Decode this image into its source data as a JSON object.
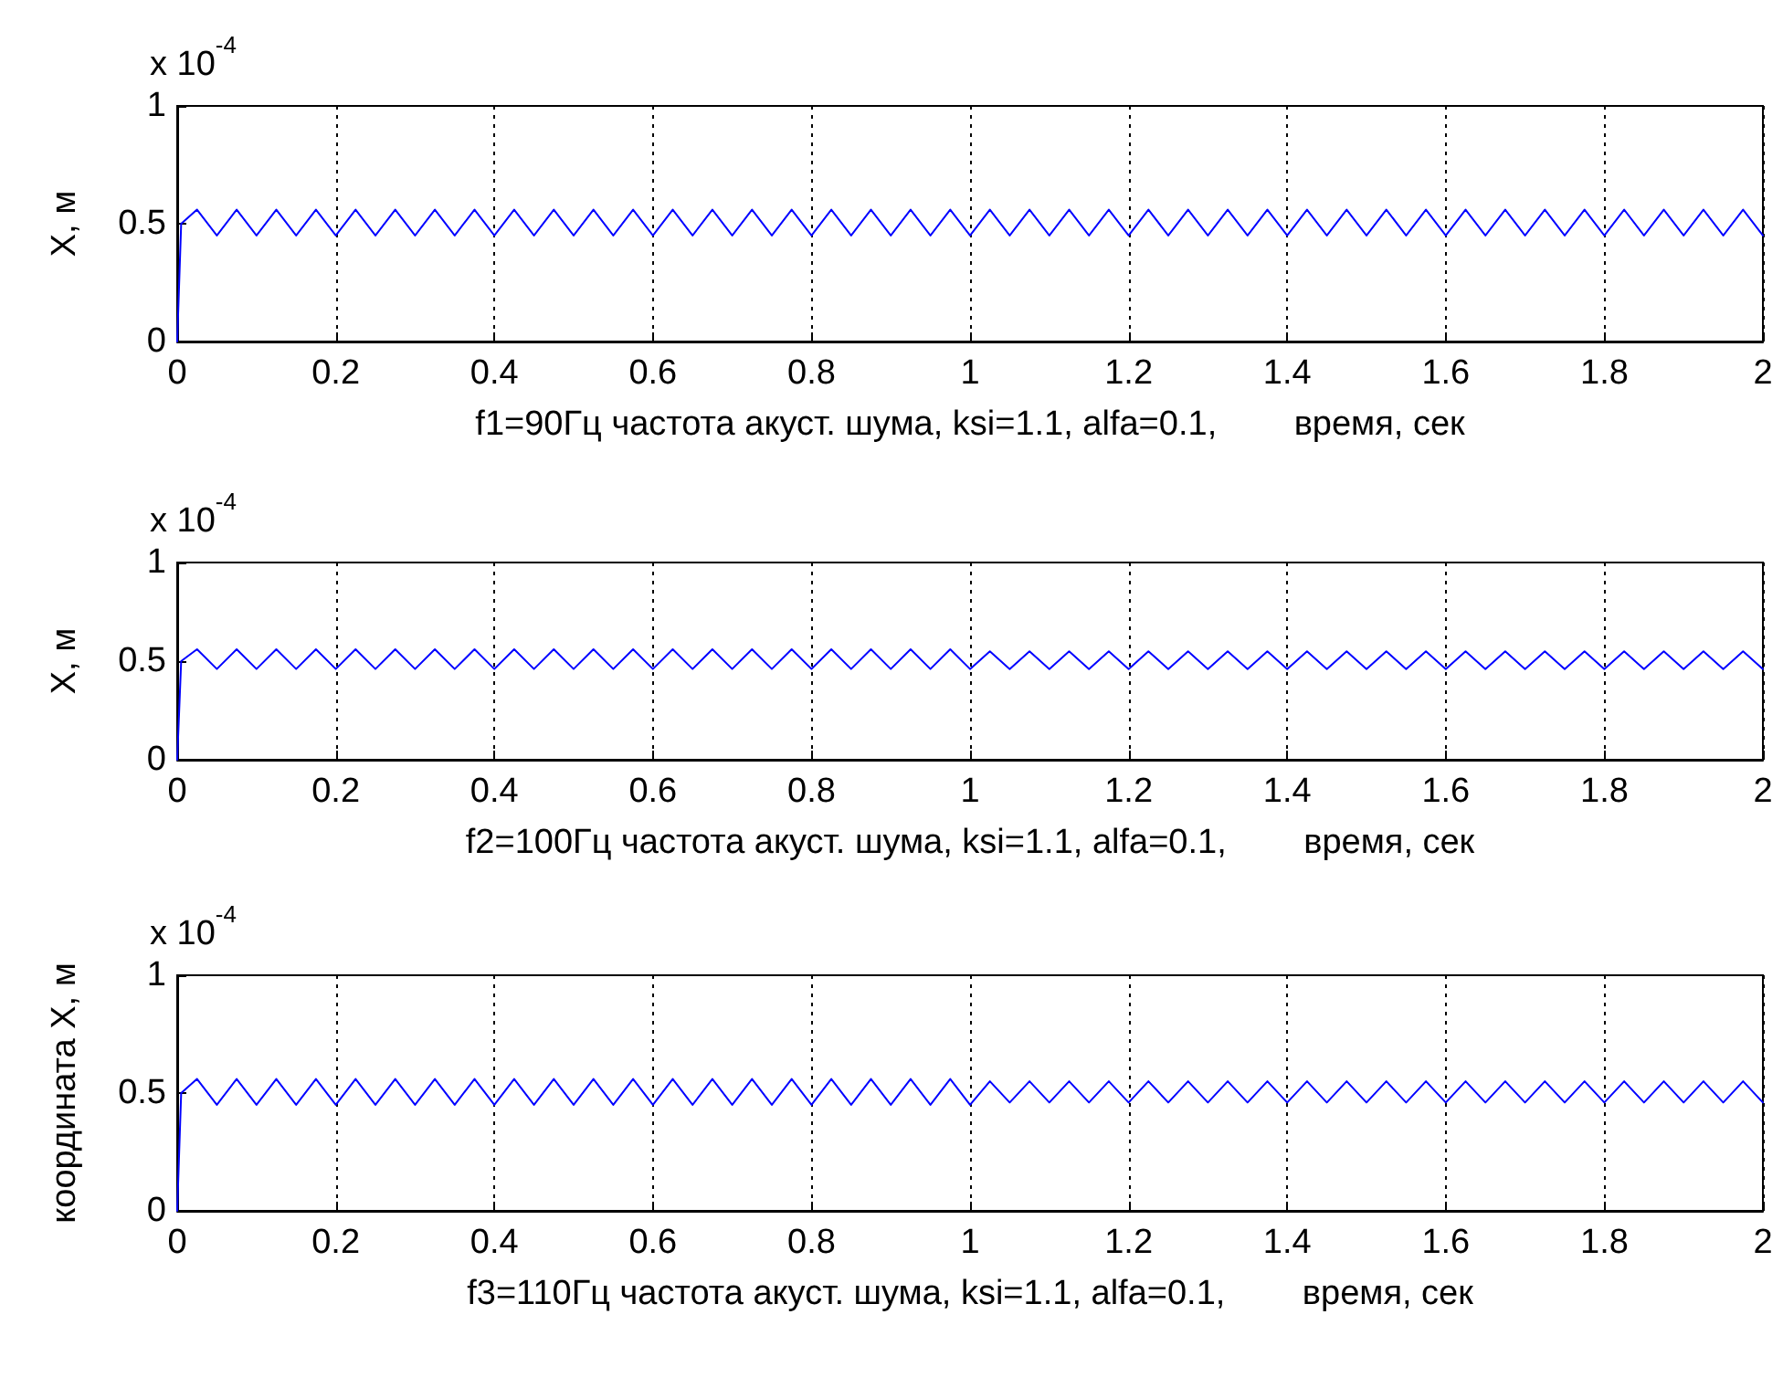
{
  "chart_data": [
    {
      "type": "line",
      "xlabel": "f1=90Гц частота акуст. шума, ksi=1.1, alfa=0.1,        время, сек",
      "ylabel": "X, м",
      "annotations": [
        "x 10$^{-4}$"
      ],
      "xlim": [
        0,
        2
      ],
      "xticks": [
        0,
        0.2,
        0.4,
        0.6,
        0.8,
        1,
        1.2,
        1.4,
        1.6,
        1.8,
        2
      ],
      "ylim": [
        0,
        1
      ],
      "yticks": [
        0,
        0.5,
        1
      ],
      "grid": "x",
      "marker": "none",
      "line_style": "solid",
      "x": [
        0,
        0.005,
        0.025,
        0.05,
        0.075,
        0.1,
        0.125,
        0.15,
        0.175,
        0.2,
        0.225,
        0.25,
        0.275,
        0.3,
        0.325,
        0.35,
        0.375,
        0.4,
        0.425,
        0.45,
        0.475,
        0.5,
        0.525,
        0.55,
        0.575,
        0.6,
        0.625,
        0.65,
        0.675,
        0.7,
        0.725,
        0.75,
        0.775,
        0.8,
        0.825,
        0.85,
        0.875,
        0.9,
        0.925,
        0.95,
        0.975,
        1,
        1.025,
        1.05,
        1.075,
        1.1,
        1.125,
        1.15,
        1.175,
        1.2,
        1.225,
        1.25,
        1.275,
        1.3,
        1.325,
        1.35,
        1.375,
        1.4,
        1.425,
        1.45,
        1.475,
        1.5,
        1.525,
        1.55,
        1.575,
        1.6,
        1.625,
        1.65,
        1.675,
        1.7,
        1.725,
        1.75,
        1.775,
        1.8,
        1.825,
        1.85,
        1.875,
        1.9,
        1.925,
        1.95,
        1.975,
        2
      ],
      "series": [
        {
          "color": "#0000ff",
          "values": [
            0,
            0.5,
            0.56,
            0.45,
            0.56,
            0.45,
            0.56,
            0.45,
            0.56,
            0.45,
            0.56,
            0.45,
            0.56,
            0.45,
            0.56,
            0.45,
            0.56,
            0.45,
            0.56,
            0.45,
            0.56,
            0.45,
            0.56,
            0.45,
            0.56,
            0.45,
            0.56,
            0.45,
            0.56,
            0.45,
            0.56,
            0.45,
            0.56,
            0.45,
            0.56,
            0.45,
            0.56,
            0.45,
            0.56,
            0.45,
            0.56,
            0.45,
            0.56,
            0.45,
            0.56,
            0.45,
            0.56,
            0.45,
            0.56,
            0.45,
            0.56,
            0.45,
            0.56,
            0.45,
            0.56,
            0.45,
            0.56,
            0.45,
            0.56,
            0.45,
            0.56,
            0.45,
            0.56,
            0.45,
            0.56,
            0.45,
            0.56,
            0.45,
            0.56,
            0.45,
            0.56,
            0.45,
            0.56,
            0.45,
            0.56,
            0.45,
            0.56,
            0.45,
            0.56,
            0.45,
            0.56,
            0.45
          ]
        }
      ]
    },
    {
      "type": "line",
      "xlabel": "f2=100Гц частота акуст. шума, ksi=1.1, alfa=0.1,        время, сек",
      "ylabel": "X, м",
      "annotations": [
        "x 10$^{-4}$"
      ],
      "xlim": [
        0,
        2
      ],
      "xticks": [
        0,
        0.2,
        0.4,
        0.6,
        0.8,
        1,
        1.2,
        1.4,
        1.6,
        1.8,
        2
      ],
      "ylim": [
        0,
        1
      ],
      "yticks": [
        0,
        0.5,
        1
      ],
      "grid": "x",
      "marker": "none",
      "line_style": "solid",
      "x": [
        0,
        0.005,
        0.025,
        0.05,
        0.075,
        0.1,
        0.125,
        0.15,
        0.175,
        0.2,
        0.225,
        0.25,
        0.275,
        0.3,
        0.325,
        0.35,
        0.375,
        0.4,
        0.425,
        0.45,
        0.475,
        0.5,
        0.525,
        0.55,
        0.575,
        0.6,
        0.625,
        0.65,
        0.675,
        0.7,
        0.725,
        0.75,
        0.775,
        0.8,
        0.825,
        0.85,
        0.875,
        0.9,
        0.925,
        0.95,
        0.975,
        1,
        1.025,
        1.05,
        1.075,
        1.1,
        1.125,
        1.15,
        1.175,
        1.2,
        1.225,
        1.25,
        1.275,
        1.3,
        1.325,
        1.35,
        1.375,
        1.4,
        1.425,
        1.45,
        1.475,
        1.5,
        1.525,
        1.55,
        1.575,
        1.6,
        1.625,
        1.65,
        1.675,
        1.7,
        1.725,
        1.75,
        1.775,
        1.8,
        1.825,
        1.85,
        1.875,
        1.9,
        1.925,
        1.95,
        1.975,
        2
      ],
      "series": [
        {
          "color": "#0000ff",
          "values": [
            0,
            0.5,
            0.56,
            0.46,
            0.56,
            0.46,
            0.56,
            0.46,
            0.56,
            0.46,
            0.56,
            0.46,
            0.56,
            0.46,
            0.56,
            0.46,
            0.56,
            0.46,
            0.56,
            0.46,
            0.56,
            0.46,
            0.56,
            0.46,
            0.56,
            0.46,
            0.56,
            0.46,
            0.56,
            0.46,
            0.56,
            0.46,
            0.56,
            0.46,
            0.56,
            0.46,
            0.56,
            0.46,
            0.56,
            0.46,
            0.56,
            0.46,
            0.55,
            0.46,
            0.55,
            0.46,
            0.55,
            0.46,
            0.55,
            0.46,
            0.55,
            0.46,
            0.55,
            0.46,
            0.55,
            0.46,
            0.55,
            0.46,
            0.55,
            0.46,
            0.55,
            0.46,
            0.55,
            0.46,
            0.55,
            0.46,
            0.55,
            0.46,
            0.55,
            0.46,
            0.55,
            0.46,
            0.55,
            0.46,
            0.55,
            0.46,
            0.55,
            0.46,
            0.55,
            0.46,
            0.55,
            0.46
          ]
        }
      ]
    },
    {
      "type": "line",
      "xlabel": "f3=110Гц частота акуст. шума, ksi=1.1, alfa=0.1,        время, сек",
      "ylabel": "координата X, м",
      "annotations": [
        "x 10$^{-4}$"
      ],
      "xlim": [
        0,
        2
      ],
      "xticks": [
        0,
        0.2,
        0.4,
        0.6,
        0.8,
        1,
        1.2,
        1.4,
        1.6,
        1.8,
        2
      ],
      "ylim": [
        0,
        1
      ],
      "yticks": [
        0,
        0.5,
        1
      ],
      "grid": "x",
      "marker": "none",
      "line_style": "solid",
      "x": [
        0,
        0.005,
        0.025,
        0.05,
        0.075,
        0.1,
        0.125,
        0.15,
        0.175,
        0.2,
        0.225,
        0.25,
        0.275,
        0.3,
        0.325,
        0.35,
        0.375,
        0.4,
        0.425,
        0.45,
        0.475,
        0.5,
        0.525,
        0.55,
        0.575,
        0.6,
        0.625,
        0.65,
        0.675,
        0.7,
        0.725,
        0.75,
        0.775,
        0.8,
        0.825,
        0.85,
        0.875,
        0.9,
        0.925,
        0.95,
        0.975,
        1,
        1.025,
        1.05,
        1.075,
        1.1,
        1.125,
        1.15,
        1.175,
        1.2,
        1.225,
        1.25,
        1.275,
        1.3,
        1.325,
        1.35,
        1.375,
        1.4,
        1.425,
        1.45,
        1.475,
        1.5,
        1.525,
        1.55,
        1.575,
        1.6,
        1.625,
        1.65,
        1.675,
        1.7,
        1.725,
        1.75,
        1.775,
        1.8,
        1.825,
        1.85,
        1.875,
        1.9,
        1.925,
        1.95,
        1.975,
        2
      ],
      "series": [
        {
          "color": "#0000ff",
          "values": [
            0,
            0.5,
            0.56,
            0.45,
            0.56,
            0.45,
            0.56,
            0.45,
            0.56,
            0.45,
            0.56,
            0.45,
            0.56,
            0.45,
            0.56,
            0.45,
            0.56,
            0.45,
            0.56,
            0.45,
            0.56,
            0.45,
            0.56,
            0.45,
            0.56,
            0.45,
            0.56,
            0.45,
            0.56,
            0.45,
            0.56,
            0.45,
            0.56,
            0.45,
            0.56,
            0.45,
            0.56,
            0.45,
            0.56,
            0.45,
            0.56,
            0.45,
            0.55,
            0.46,
            0.55,
            0.46,
            0.55,
            0.46,
            0.55,
            0.46,
            0.55,
            0.46,
            0.55,
            0.46,
            0.55,
            0.46,
            0.55,
            0.46,
            0.55,
            0.46,
            0.55,
            0.46,
            0.55,
            0.46,
            0.55,
            0.46,
            0.55,
            0.46,
            0.55,
            0.46,
            0.55,
            0.46,
            0.55,
            0.46,
            0.55,
            0.46,
            0.55,
            0.46,
            0.55,
            0.46,
            0.55,
            0.46
          ]
        }
      ]
    }
  ]
}
